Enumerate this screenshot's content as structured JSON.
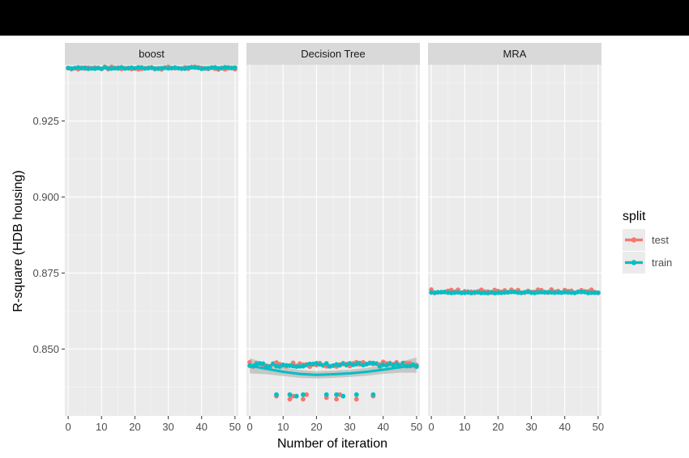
{
  "chart_data": {
    "type": "scatter",
    "facets": [
      "boost",
      "Decision Tree",
      "MRA"
    ],
    "xlabel": "Number of iteration",
    "ylabel": "R-square (HDB housing)",
    "x_ticks": [
      0,
      10,
      20,
      30,
      40,
      50
    ],
    "y_ticks": [
      0.85,
      0.875,
      0.9,
      0.925
    ],
    "y_tick_labels": [
      "0.850",
      "0.875",
      "0.900",
      "0.925"
    ],
    "xlim": [
      -1,
      51
    ],
    "ylim": [
      0.828,
      0.9435
    ],
    "grid": true,
    "legend": {
      "title": "split",
      "position": "right",
      "entries": [
        {
          "name": "test",
          "color": "#F8766D"
        },
        {
          "name": "train",
          "color": "#00BFC4"
        }
      ]
    },
    "smooth_color": "#00BFC4",
    "band_color": "#999999",
    "series": {
      "boost": {
        "test_base": 0.9424,
        "test_amp": 0.00045,
        "train_base": 0.9424,
        "train_amp": 0.00025,
        "smooth": [
          [
            0,
            0.9424
          ],
          [
            50,
            0.9424
          ]
        ]
      },
      "Decision Tree": {
        "test_base": 0.845,
        "test_amp": 0.0008,
        "train_base": 0.8448,
        "train_amp": 0.0006,
        "test_low": [
          [
            8,
            0.8345
          ],
          [
            12,
            0.8335
          ],
          [
            13,
            0.8345
          ],
          [
            16,
            0.8335
          ],
          [
            17,
            0.835
          ],
          [
            23,
            0.834
          ],
          [
            26,
            0.8335
          ],
          [
            27,
            0.835
          ],
          [
            32,
            0.8335
          ],
          [
            37,
            0.8345
          ]
        ],
        "train_low": [
          [
            8,
            0.835
          ],
          [
            12,
            0.835
          ],
          [
            14,
            0.8345
          ],
          [
            16,
            0.835
          ],
          [
            23,
            0.835
          ],
          [
            26,
            0.835
          ],
          [
            28,
            0.8345
          ],
          [
            32,
            0.835
          ],
          [
            37,
            0.835
          ]
        ],
        "smooth": [
          [
            0,
            0.8445
          ],
          [
            5,
            0.8435
          ],
          [
            10,
            0.8425
          ],
          [
            15,
            0.8418
          ],
          [
            20,
            0.8415
          ],
          [
            25,
            0.8417
          ],
          [
            30,
            0.842
          ],
          [
            35,
            0.8425
          ],
          [
            40,
            0.8432
          ],
          [
            45,
            0.844
          ],
          [
            50,
            0.8447
          ]
        ],
        "band": [
          0.0025,
          0.0018,
          0.0014,
          0.0013,
          0.0012,
          0.0012,
          0.0012,
          0.0013,
          0.0014,
          0.0018,
          0.0025
        ]
      },
      "MRA": {
        "test_base": 0.869,
        "test_amp": 0.0006,
        "train_base": 0.8686,
        "train_amp": 0.0002,
        "smooth": [
          [
            0,
            0.8687
          ],
          [
            50,
            0.8687
          ]
        ]
      }
    },
    "n_points": 51
  }
}
